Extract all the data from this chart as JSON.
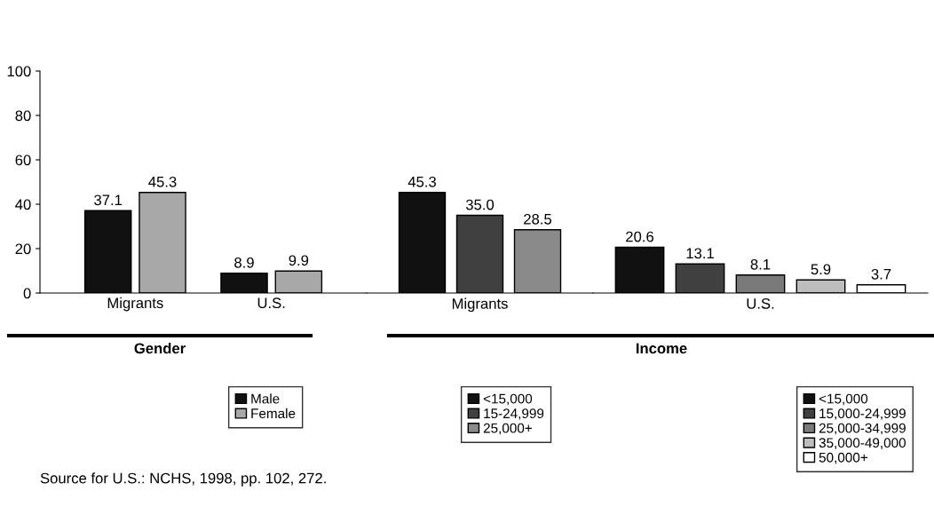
{
  "chart_data": [
    {
      "type": "bar",
      "categories": [
        "Migrants",
        "U.S."
      ],
      "series": [
        {
          "name": "Male",
          "color": "#111111",
          "values": [
            37.1,
            8.9
          ],
          "value_labels": [
            "37.1",
            "8.9"
          ]
        },
        {
          "name": "Female",
          "color": "#a8a8a8",
          "values": [
            45.3,
            9.9
          ],
          "value_labels": [
            "45.3",
            "9.9"
          ]
        }
      ],
      "ylim": [
        0,
        100
      ],
      "yticks": [
        0,
        20,
        40,
        60,
        80,
        100
      ],
      "grid": false,
      "legend": "bottom",
      "annotations": [
        "Gender",
        "Source for U.S.: NCHS, 1998, pp. 102, 272."
      ]
    },
    {
      "type": "bar",
      "categories": [
        null,
        null,
        null
      ],
      "xlabel": "Migrants",
      "stacked": true,
      "series": [
        {
          "name": "<15,000",
          "color": "#111111",
          "values": [
            45.3,
            null,
            null
          ],
          "value_labels": [
            "45.3",
            null,
            null
          ]
        },
        {
          "name": "15-24,999",
          "color": "#404040",
          "values": [
            null,
            35.0,
            null
          ],
          "value_labels": [
            null,
            "35.0",
            null
          ]
        },
        {
          "name": "25,000+",
          "color": "#8a8a8a",
          "values": [
            null,
            null,
            28.5
          ],
          "value_labels": [
            null,
            null,
            "28.5"
          ]
        }
      ],
      "ylim": [
        0,
        100
      ],
      "yticks": [
        0,
        20,
        40,
        60,
        80,
        100
      ],
      "tick_labels": false,
      "grid": false,
      "legend": "bottom"
    },
    {
      "type": "bar",
      "categories": [
        null,
        null,
        null,
        null,
        null
      ],
      "xlabel": "U.S.",
      "stacked": true,
      "series": [
        {
          "name": "<15,000",
          "color": "#111111",
          "values": [
            20.6,
            null,
            null,
            null,
            null
          ],
          "value_labels": [
            "20.6",
            null,
            null,
            null,
            null
          ]
        },
        {
          "name": "15,000-24,999",
          "color": "#404040",
          "values": [
            null,
            13.1,
            null,
            null,
            null
          ],
          "value_labels": [
            null,
            "13.1",
            null,
            null,
            null
          ]
        },
        {
          "name": "25,000-34,999",
          "color": "#7a7a7a",
          "values": [
            null,
            null,
            8.1,
            null,
            null
          ],
          "value_labels": [
            null,
            null,
            "8.1",
            null,
            null
          ]
        },
        {
          "name": "35,000-49,000",
          "color": "#bdbdbd",
          "values": [
            null,
            null,
            null,
            5.9,
            null
          ],
          "value_labels": [
            null,
            null,
            null,
            "5.9",
            null
          ]
        },
        {
          "name": "50,000+",
          "color": "#ffffff",
          "values": [
            null,
            null,
            null,
            null,
            3.7
          ],
          "value_labels": [
            null,
            null,
            null,
            null,
            "3.7"
          ]
        }
      ],
      "ylim": [
        0,
        100
      ],
      "yticks": [
        0,
        20,
        40,
        60,
        80,
        100
      ],
      "tick_labels": false,
      "grid": false,
      "legend": "bottom",
      "annotations": [
        "Income"
      ]
    }
  ]
}
